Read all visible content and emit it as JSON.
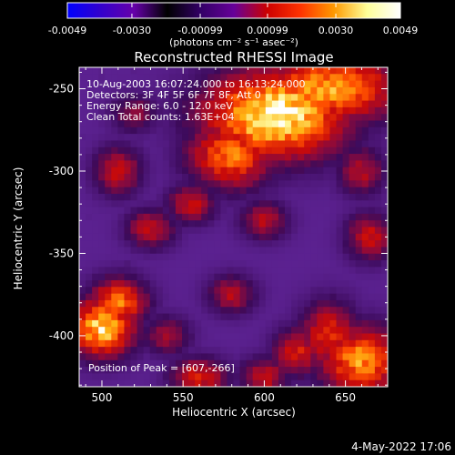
{
  "colorbar": {
    "tick_labels": [
      "-0.0049",
      "-0.0030",
      "-0.00099",
      "0.00099",
      "0.0030",
      "0.0049"
    ],
    "tick_values": [
      -0.0049,
      -0.003,
      -0.00099,
      0.00099,
      0.003,
      0.0049
    ],
    "range": [
      -0.0049,
      0.0049
    ],
    "unit_label": "(photons cm⁻² s⁻¹ asec⁻²)",
    "colors": [
      "#0000ff",
      "#3300cc",
      "#6600aa",
      "#000000",
      "#330066",
      "#660099",
      "#cc0000",
      "#ff3300",
      "#ff9900",
      "#ffff99",
      "#ffffff"
    ]
  },
  "chart_data": {
    "type": "heatmap",
    "title": "Reconstructed RHESSI Image",
    "xlabel": "Heliocentric X (arcsec)",
    "ylabel": "Heliocentric Y (arcsec)",
    "xlim": [
      486,
      676
    ],
    "ylim": [
      -431,
      -237
    ],
    "x_ticks": [
      500,
      550,
      600,
      650
    ],
    "x_tick_labels": [
      "500",
      "550",
      "600",
      "650"
    ],
    "y_ticks": [
      -250,
      -300,
      -350,
      -400
    ],
    "y_tick_labels": [
      "-250",
      "-300",
      "-350",
      "-400"
    ],
    "annotations": [
      "10-Aug-2003 16:07:24.000 to 16:13:24.000",
      "Detectors: 3F 4F 5F 6F 7F 8F, Att 0",
      "Energy Range: 6.0 - 12.0 keV",
      "Clean    Total counts: 1.63E+04"
    ],
    "peak_label": "Position of Peak = [607,-266]",
    "peak": [
      607,
      -266
    ],
    "sources": [
      {
        "x": 607,
        "y": -266,
        "amp": 1.0,
        "sx": 30,
        "sy": 18
      },
      {
        "x": 640,
        "y": -250,
        "amp": 0.8,
        "sx": 30,
        "sy": 14
      },
      {
        "x": 580,
        "y": -290,
        "amp": 0.7,
        "sx": 18,
        "sy": 14
      },
      {
        "x": 500,
        "y": -395,
        "amp": 0.9,
        "sx": 14,
        "sy": 12
      },
      {
        "x": 510,
        "y": -380,
        "amp": 0.7,
        "sx": 12,
        "sy": 10
      },
      {
        "x": 660,
        "y": -415,
        "amp": 0.75,
        "sx": 18,
        "sy": 14
      },
      {
        "x": 640,
        "y": -400,
        "amp": 0.55,
        "sx": 12,
        "sy": 14
      },
      {
        "x": 620,
        "y": -410,
        "amp": 0.5,
        "sx": 10,
        "sy": 10
      },
      {
        "x": 555,
        "y": -320,
        "amp": 0.45,
        "sx": 10,
        "sy": 8
      },
      {
        "x": 600,
        "y": -330,
        "amp": 0.4,
        "sx": 10,
        "sy": 8
      },
      {
        "x": 510,
        "y": -300,
        "amp": 0.45,
        "sx": 10,
        "sy": 10
      },
      {
        "x": 530,
        "y": -335,
        "amp": 0.45,
        "sx": 10,
        "sy": 8
      },
      {
        "x": 560,
        "y": -425,
        "amp": 0.5,
        "sx": 12,
        "sy": 8
      },
      {
        "x": 600,
        "y": -425,
        "amp": 0.45,
        "sx": 10,
        "sy": 8
      },
      {
        "x": 665,
        "y": -340,
        "amp": 0.45,
        "sx": 10,
        "sy": 10
      },
      {
        "x": 660,
        "y": -300,
        "amp": 0.4,
        "sx": 10,
        "sy": 10
      },
      {
        "x": 580,
        "y": -375,
        "amp": 0.4,
        "sx": 10,
        "sy": 8
      },
      {
        "x": 520,
        "y": -265,
        "amp": 0.3,
        "sx": 10,
        "sy": 8
      },
      {
        "x": 540,
        "y": -400,
        "amp": 0.35,
        "sx": 10,
        "sy": 8
      }
    ]
  },
  "footer": {
    "date": "4-May-2022 17:06"
  }
}
